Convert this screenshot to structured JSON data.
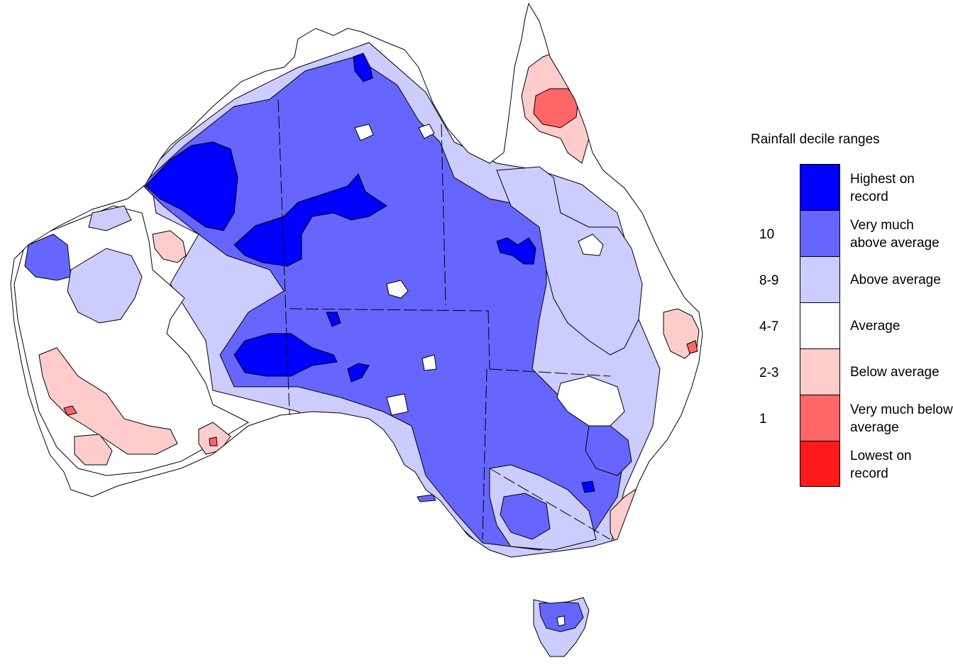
{
  "legend": {
    "title": "Rainfall decile ranges",
    "categories": [
      {
        "label": "Highest on record",
        "color": "#0000ff"
      },
      {
        "label": "Very much above average",
        "color": "#6666ff"
      },
      {
        "label": "Above average",
        "color": "#ccccff"
      },
      {
        "label": "Average",
        "color": "#ffffff"
      },
      {
        "label": "Below average",
        "color": "#ffcccc"
      },
      {
        "label": "Very much below average",
        "color": "#ff6666"
      },
      {
        "label": "Lowest on record",
        "color": "#ff1a1a"
      }
    ],
    "range_labels": [
      "10",
      "8-9",
      "4-7",
      "2-3",
      "1"
    ]
  },
  "map": {
    "subject": "Australia rainfall deciles",
    "state_borders": "dashed"
  }
}
